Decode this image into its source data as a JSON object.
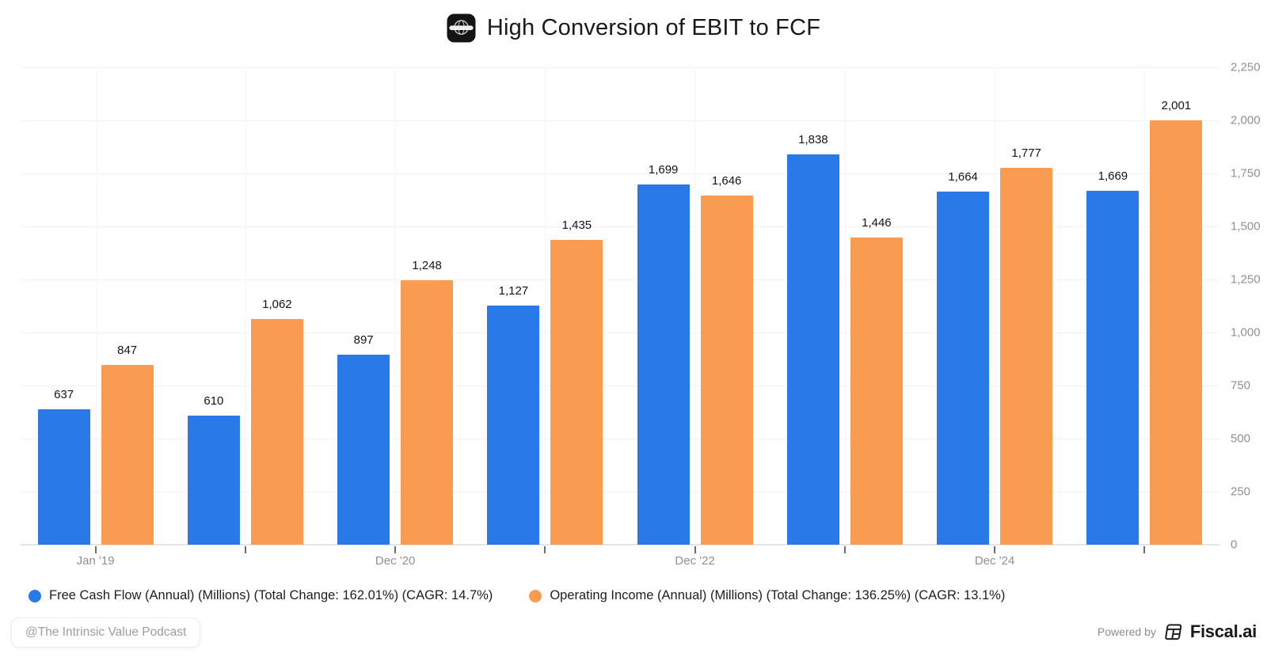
{
  "header": {
    "title": "High Conversion of EBIT to FCF",
    "icon": "globe-badge-icon"
  },
  "chart_data": {
    "type": "bar",
    "title": "High Conversion of EBIT to FCF",
    "x_tick_labels": [
      "Jan '19",
      "",
      "Dec '20",
      "",
      "Dec '22",
      "",
      "Dec '24",
      ""
    ],
    "y_tick_values": [
      0,
      250,
      500,
      750,
      1000,
      1250,
      1500,
      1750,
      2000,
      2250
    ],
    "y_tick_labels": [
      "0",
      "250",
      "500",
      "750",
      "1,000",
      "1,250",
      "1,500",
      "1,750",
      "2,000",
      "2,250"
    ],
    "ylim": [
      0,
      2250
    ],
    "grid": true,
    "legend_position": "bottom-left",
    "series": [
      {
        "name": "Free Cash Flow (Annual) (Millions) (Total Change: 162.01%) (CAGR: 14.7%)",
        "color": "#2A79E8",
        "values": [
          637,
          610,
          897,
          1127,
          1699,
          1838,
          1664,
          1669
        ],
        "value_labels": [
          "637",
          "610",
          "897",
          "1,127",
          "1,699",
          "1,838",
          "1,664",
          "1,669"
        ]
      },
      {
        "name": "Operating Income (Annual) (Millions) (Total Change: 136.25%) (CAGR: 13.1%)",
        "color": "#F99C52",
        "values": [
          847,
          1062,
          1248,
          1435,
          1646,
          1446,
          1777,
          2001
        ],
        "value_labels": [
          "847",
          "1,062",
          "1,248",
          "1,435",
          "1,646",
          "1,446",
          "1,777",
          "2,001"
        ]
      }
    ]
  },
  "footer": {
    "watermark": "@The Intrinsic Value Podcast",
    "powered_by_label": "Powered by",
    "brand_name": "Fiscal.ai"
  }
}
